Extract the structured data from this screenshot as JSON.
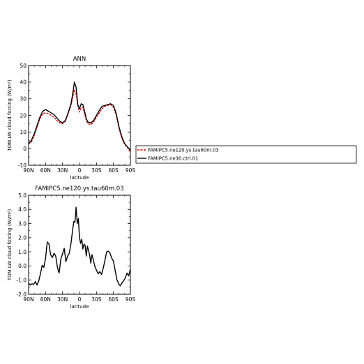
{
  "chart_data": [
    {
      "type": "line",
      "title": "ANN",
      "xlabel": "latitude",
      "ylabel": "TOM LW cloud forcing (W/m²)",
      "xlim": [
        90,
        -90
      ],
      "ylim": [
        -10,
        50
      ],
      "xtick_values": [
        90,
        60,
        30,
        0,
        -30,
        -60,
        -90
      ],
      "xtick_labels": [
        "90N",
        "60N",
        "30N",
        "0",
        "30S",
        "60S",
        "90S"
      ],
      "ytick_values": [
        -10,
        0,
        10,
        20,
        30,
        40,
        50
      ],
      "ytick_labels": [
        "-10",
        "0",
        "10",
        "20",
        "30",
        "40",
        "50"
      ],
      "x": [
        90,
        85,
        80,
        75,
        70,
        65,
        60,
        55,
        50,
        45,
        40,
        35,
        30,
        25,
        20,
        15,
        12,
        9,
        6,
        3,
        0,
        -3,
        -6,
        -9,
        -12,
        -15,
        -20,
        -25,
        -30,
        -35,
        -40,
        -45,
        -50,
        -55,
        -60,
        -65,
        -70,
        -75,
        -80,
        -85,
        -90
      ],
      "series": [
        {
          "name": "FAMIPC5.ne120.ys.tau60m.03",
          "color": "#e00000",
          "dash": true,
          "values": [
            3,
            4,
            8,
            13,
            18,
            21,
            21.5,
            21,
            20,
            19,
            17,
            15.5,
            15,
            16.5,
            21,
            26,
            31,
            35.5,
            33,
            26,
            22,
            24.5,
            25,
            21,
            17,
            15,
            14.5,
            16,
            19,
            21.5,
            24,
            25.5,
            26,
            26.5,
            25,
            20,
            12,
            6,
            2.5,
            0.5,
            -2
          ]
        },
        {
          "name": "FAMIPC5.ne30.ctrl.01",
          "color": "#000000",
          "dash": false,
          "values": [
            3,
            5,
            9,
            14,
            19,
            22.5,
            23.5,
            22.5,
            21.5,
            20.5,
            18.5,
            16.5,
            15.5,
            17,
            21.5,
            27,
            33,
            40,
            37,
            26.5,
            24,
            27,
            26.5,
            22.5,
            18,
            16,
            15.5,
            17,
            20,
            23,
            25.5,
            26,
            26.5,
            27,
            26,
            21,
            13,
            7,
            3,
            1,
            -1
          ]
        }
      ],
      "legend": "right"
    },
    {
      "type": "line",
      "title": "FAMIPC5.ne120.ys.tau60m.03",
      "xlabel": "latitude",
      "ylabel": "TOM LW cloud forcing (W/m²)",
      "xlim": [
        90,
        -90
      ],
      "ylim": [
        -2,
        5
      ],
      "xtick_values": [
        90,
        60,
        30,
        0,
        -30,
        -60,
        -90
      ],
      "xtick_labels": [
        "90N",
        "60N",
        "30N",
        "0",
        "30S",
        "60S",
        "90S"
      ],
      "ytick_values": [
        -2,
        -1,
        0,
        1,
        2,
        3,
        4,
        5
      ],
      "ytick_labels": [
        "-2.0",
        "-1.0",
        "0.0",
        "1.0",
        "2.0",
        "3.0",
        "4.0",
        "5.0"
      ],
      "x": [
        90,
        87,
        84,
        81,
        78,
        75,
        72,
        69,
        66,
        63,
        60,
        57,
        54,
        51,
        48,
        45,
        42,
        39,
        36,
        33,
        30,
        27,
        24,
        21,
        18,
        15,
        12,
        10,
        8,
        6,
        4,
        2,
        0,
        -2,
        -4,
        -6,
        -8,
        -10,
        -12,
        -14,
        -16,
        -18,
        -20,
        -22,
        -24,
        -27,
        -30,
        -33,
        -36,
        -39,
        -42,
        -45,
        -48,
        -51,
        -54,
        -57,
        -60,
        -63,
        -66,
        -69,
        -72,
        -75,
        -78,
        -81,
        -84,
        -87,
        -90
      ],
      "series": [
        {
          "name": "",
          "color": "#000000",
          "dash": false,
          "values": [
            -1.2,
            -1.35,
            -1.25,
            -1.3,
            -1.1,
            -1.35,
            -1.05,
            -0.55,
            0.05,
            -0.1,
            0.55,
            1.7,
            1.55,
            0.8,
            0.6,
            0.9,
            0.7,
            -0.1,
            -0.5,
            0.5,
            0.85,
            1.25,
            0.3,
            0.7,
            0.9,
            1.6,
            2.6,
            3.15,
            3.1,
            4.15,
            3.0,
            3.35,
            2.0,
            1.6,
            1.9,
            1.2,
            1.55,
            1.45,
            0.7,
            1.4,
            1.1,
            0.75,
            0.2,
            0.8,
            0.5,
            0.0,
            -0.3,
            -0.55,
            -0.4,
            -0.6,
            -0.15,
            0.4,
            1.0,
            1.05,
            0.9,
            0.55,
            0.35,
            -0.3,
            -0.95,
            -1.25,
            -1.4,
            -1.2,
            -1.05,
            -0.85,
            -0.5,
            -0.7,
            -0.2
          ]
        }
      ]
    }
  ]
}
